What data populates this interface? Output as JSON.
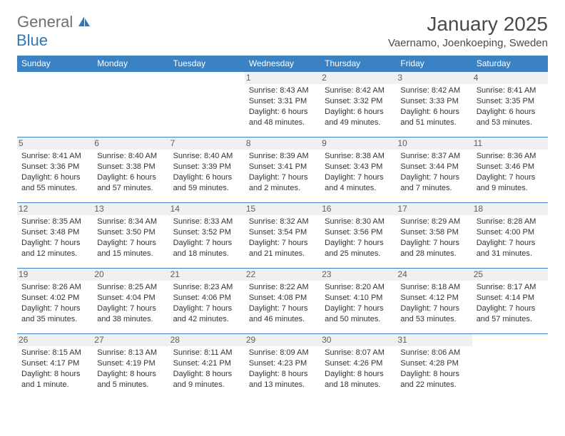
{
  "logo": {
    "main": "General",
    "sub": "Blue"
  },
  "title": "January 2025",
  "location": "Vaernamo, Joenkoeping, Sweden",
  "colors": {
    "header_bg": "#3a82c4",
    "header_text": "#ffffff",
    "rule": "#3a82c4",
    "daynum_bg": "#eef0f2",
    "daynum_text": "#606060",
    "body_text": "#333333",
    "logo_gray": "#6f6f6f",
    "logo_blue": "#2f78b7"
  },
  "days_of_week": [
    "Sunday",
    "Monday",
    "Tuesday",
    "Wednesday",
    "Thursday",
    "Friday",
    "Saturday"
  ],
  "weeks": [
    [
      null,
      null,
      null,
      {
        "n": "1",
        "sr": "Sunrise: 8:43 AM",
        "ss": "Sunset: 3:31 PM",
        "dl": "Daylight: 6 hours and 48 minutes."
      },
      {
        "n": "2",
        "sr": "Sunrise: 8:42 AM",
        "ss": "Sunset: 3:32 PM",
        "dl": "Daylight: 6 hours and 49 minutes."
      },
      {
        "n": "3",
        "sr": "Sunrise: 8:42 AM",
        "ss": "Sunset: 3:33 PM",
        "dl": "Daylight: 6 hours and 51 minutes."
      },
      {
        "n": "4",
        "sr": "Sunrise: 8:41 AM",
        "ss": "Sunset: 3:35 PM",
        "dl": "Daylight: 6 hours and 53 minutes."
      }
    ],
    [
      {
        "n": "5",
        "sr": "Sunrise: 8:41 AM",
        "ss": "Sunset: 3:36 PM",
        "dl": "Daylight: 6 hours and 55 minutes."
      },
      {
        "n": "6",
        "sr": "Sunrise: 8:40 AM",
        "ss": "Sunset: 3:38 PM",
        "dl": "Daylight: 6 hours and 57 minutes."
      },
      {
        "n": "7",
        "sr": "Sunrise: 8:40 AM",
        "ss": "Sunset: 3:39 PM",
        "dl": "Daylight: 6 hours and 59 minutes."
      },
      {
        "n": "8",
        "sr": "Sunrise: 8:39 AM",
        "ss": "Sunset: 3:41 PM",
        "dl": "Daylight: 7 hours and 2 minutes."
      },
      {
        "n": "9",
        "sr": "Sunrise: 8:38 AM",
        "ss": "Sunset: 3:43 PM",
        "dl": "Daylight: 7 hours and 4 minutes."
      },
      {
        "n": "10",
        "sr": "Sunrise: 8:37 AM",
        "ss": "Sunset: 3:44 PM",
        "dl": "Daylight: 7 hours and 7 minutes."
      },
      {
        "n": "11",
        "sr": "Sunrise: 8:36 AM",
        "ss": "Sunset: 3:46 PM",
        "dl": "Daylight: 7 hours and 9 minutes."
      }
    ],
    [
      {
        "n": "12",
        "sr": "Sunrise: 8:35 AM",
        "ss": "Sunset: 3:48 PM",
        "dl": "Daylight: 7 hours and 12 minutes."
      },
      {
        "n": "13",
        "sr": "Sunrise: 8:34 AM",
        "ss": "Sunset: 3:50 PM",
        "dl": "Daylight: 7 hours and 15 minutes."
      },
      {
        "n": "14",
        "sr": "Sunrise: 8:33 AM",
        "ss": "Sunset: 3:52 PM",
        "dl": "Daylight: 7 hours and 18 minutes."
      },
      {
        "n": "15",
        "sr": "Sunrise: 8:32 AM",
        "ss": "Sunset: 3:54 PM",
        "dl": "Daylight: 7 hours and 21 minutes."
      },
      {
        "n": "16",
        "sr": "Sunrise: 8:30 AM",
        "ss": "Sunset: 3:56 PM",
        "dl": "Daylight: 7 hours and 25 minutes."
      },
      {
        "n": "17",
        "sr": "Sunrise: 8:29 AM",
        "ss": "Sunset: 3:58 PM",
        "dl": "Daylight: 7 hours and 28 minutes."
      },
      {
        "n": "18",
        "sr": "Sunrise: 8:28 AM",
        "ss": "Sunset: 4:00 PM",
        "dl": "Daylight: 7 hours and 31 minutes."
      }
    ],
    [
      {
        "n": "19",
        "sr": "Sunrise: 8:26 AM",
        "ss": "Sunset: 4:02 PM",
        "dl": "Daylight: 7 hours and 35 minutes."
      },
      {
        "n": "20",
        "sr": "Sunrise: 8:25 AM",
        "ss": "Sunset: 4:04 PM",
        "dl": "Daylight: 7 hours and 38 minutes."
      },
      {
        "n": "21",
        "sr": "Sunrise: 8:23 AM",
        "ss": "Sunset: 4:06 PM",
        "dl": "Daylight: 7 hours and 42 minutes."
      },
      {
        "n": "22",
        "sr": "Sunrise: 8:22 AM",
        "ss": "Sunset: 4:08 PM",
        "dl": "Daylight: 7 hours and 46 minutes."
      },
      {
        "n": "23",
        "sr": "Sunrise: 8:20 AM",
        "ss": "Sunset: 4:10 PM",
        "dl": "Daylight: 7 hours and 50 minutes."
      },
      {
        "n": "24",
        "sr": "Sunrise: 8:18 AM",
        "ss": "Sunset: 4:12 PM",
        "dl": "Daylight: 7 hours and 53 minutes."
      },
      {
        "n": "25",
        "sr": "Sunrise: 8:17 AM",
        "ss": "Sunset: 4:14 PM",
        "dl": "Daylight: 7 hours and 57 minutes."
      }
    ],
    [
      {
        "n": "26",
        "sr": "Sunrise: 8:15 AM",
        "ss": "Sunset: 4:17 PM",
        "dl": "Daylight: 8 hours and 1 minute."
      },
      {
        "n": "27",
        "sr": "Sunrise: 8:13 AM",
        "ss": "Sunset: 4:19 PM",
        "dl": "Daylight: 8 hours and 5 minutes."
      },
      {
        "n": "28",
        "sr": "Sunrise: 8:11 AM",
        "ss": "Sunset: 4:21 PM",
        "dl": "Daylight: 8 hours and 9 minutes."
      },
      {
        "n": "29",
        "sr": "Sunrise: 8:09 AM",
        "ss": "Sunset: 4:23 PM",
        "dl": "Daylight: 8 hours and 13 minutes."
      },
      {
        "n": "30",
        "sr": "Sunrise: 8:07 AM",
        "ss": "Sunset: 4:26 PM",
        "dl": "Daylight: 8 hours and 18 minutes."
      },
      {
        "n": "31",
        "sr": "Sunrise: 8:06 AM",
        "ss": "Sunset: 4:28 PM",
        "dl": "Daylight: 8 hours and 22 minutes."
      },
      null
    ]
  ]
}
